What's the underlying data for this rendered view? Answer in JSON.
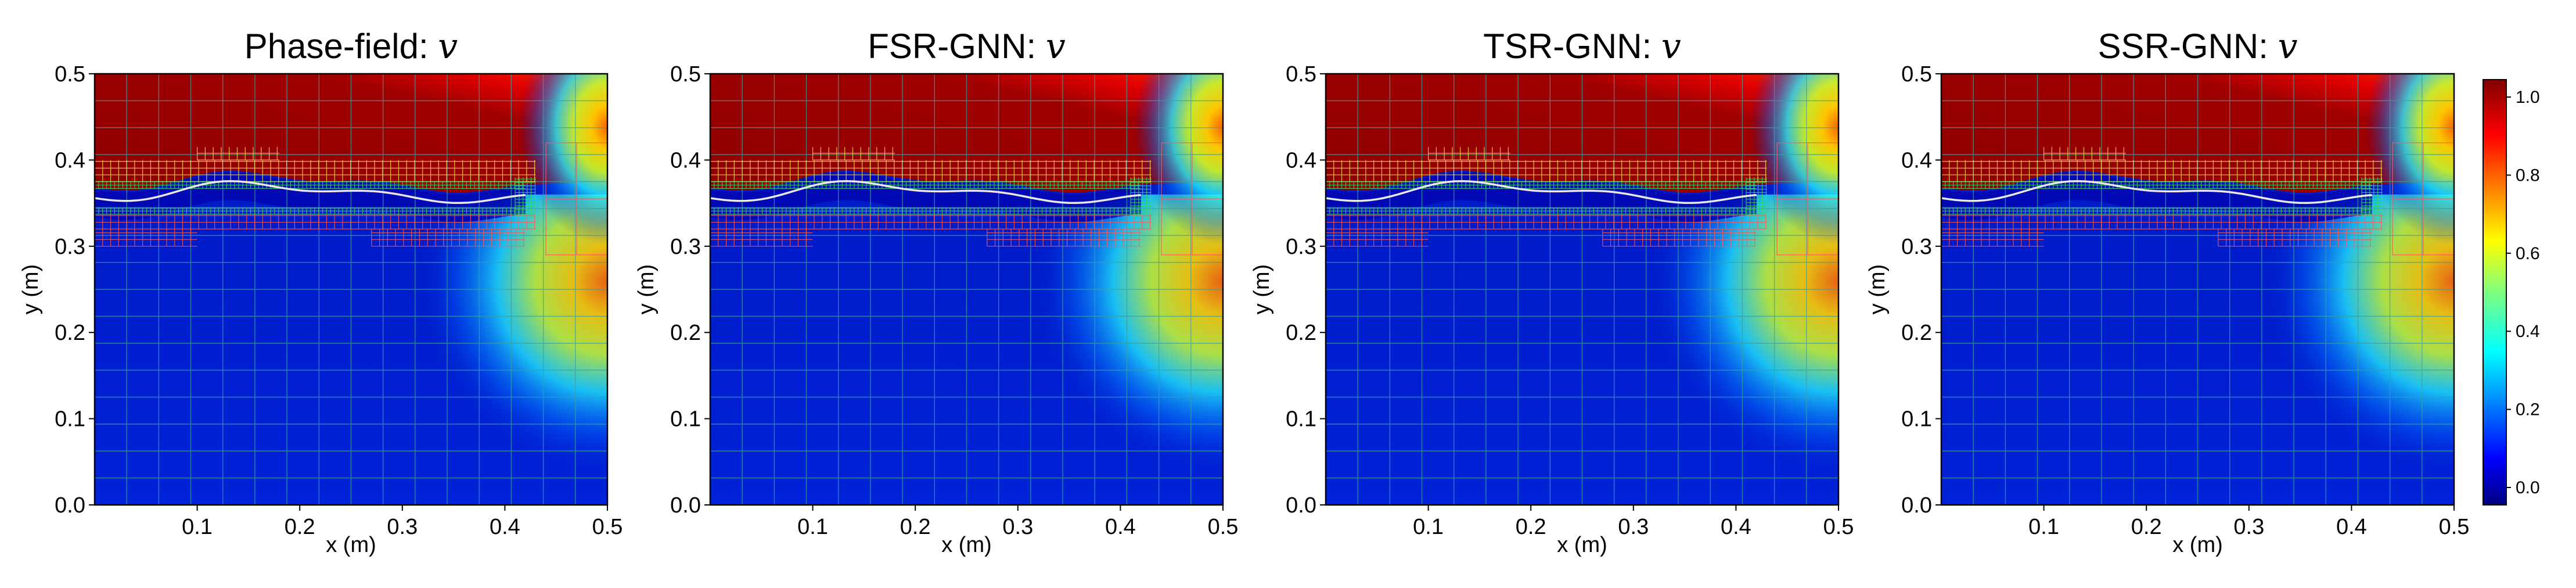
{
  "chart_data": [
    {
      "type": "heatmap",
      "title": "Phase-field: ",
      "title_var": "v",
      "xlabel": "x (m)",
      "ylabel": "y (m)",
      "xlim": [
        0,
        0.5
      ],
      "ylim": [
        0,
        0.5
      ],
      "xticks": [
        "0.1",
        "0.2",
        "0.3",
        "0.4",
        "0.5"
      ],
      "yticks": [
        "0.0",
        "0.1",
        "0.2",
        "0.3",
        "0.4",
        "0.5"
      ],
      "crack_tip_x": 0.42,
      "crack_y": 0.355
    },
    {
      "type": "heatmap",
      "title": "FSR-GNN: ",
      "title_var": "v",
      "xlabel": "x (m)",
      "ylabel": "y (m)",
      "xlim": [
        0,
        0.5
      ],
      "ylim": [
        0,
        0.5
      ],
      "xticks": [
        "0.1",
        "0.2",
        "0.3",
        "0.4",
        "0.5"
      ],
      "yticks": [
        "0.0",
        "0.1",
        "0.2",
        "0.3",
        "0.4",
        "0.5"
      ],
      "crack_tip_x": 0.42,
      "crack_y": 0.355
    },
    {
      "type": "heatmap",
      "title": "TSR-GNN: ",
      "title_var": "v",
      "xlabel": "x (m)",
      "ylabel": "y (m)",
      "xlim": [
        0,
        0.5
      ],
      "ylim": [
        0,
        0.5
      ],
      "xticks": [
        "0.1",
        "0.2",
        "0.3",
        "0.4",
        "0.5"
      ],
      "yticks": [
        "0.0",
        "0.1",
        "0.2",
        "0.3",
        "0.4",
        "0.5"
      ],
      "crack_tip_x": 0.42,
      "crack_y": 0.355
    },
    {
      "type": "heatmap",
      "title": "SSR-GNN: ",
      "title_var": "v",
      "xlabel": "x (m)",
      "ylabel": "y (m)",
      "xlim": [
        0,
        0.5
      ],
      "ylim": [
        0,
        0.5
      ],
      "xticks": [
        "0.1",
        "0.2",
        "0.3",
        "0.4",
        "0.5"
      ],
      "yticks": [
        "0.0",
        "0.1",
        "0.2",
        "0.3",
        "0.4",
        "0.5"
      ],
      "crack_tip_x": 0.42,
      "crack_y": 0.355
    }
  ],
  "colorbar": {
    "colormap": "jet",
    "range": [
      0.0,
      1.0
    ],
    "ticks": [
      "0.0",
      "0.2",
      "0.4",
      "0.6",
      "0.8",
      "1.0"
    ]
  },
  "colors": {
    "fine_mesh_red": "#ff5a5a",
    "fine_mesh_yellow": "#ffe14a",
    "fine_mesh_green": "#39d96a",
    "coarse_grid": "#3aa0a0",
    "crack_line": "#e8e8e8"
  }
}
